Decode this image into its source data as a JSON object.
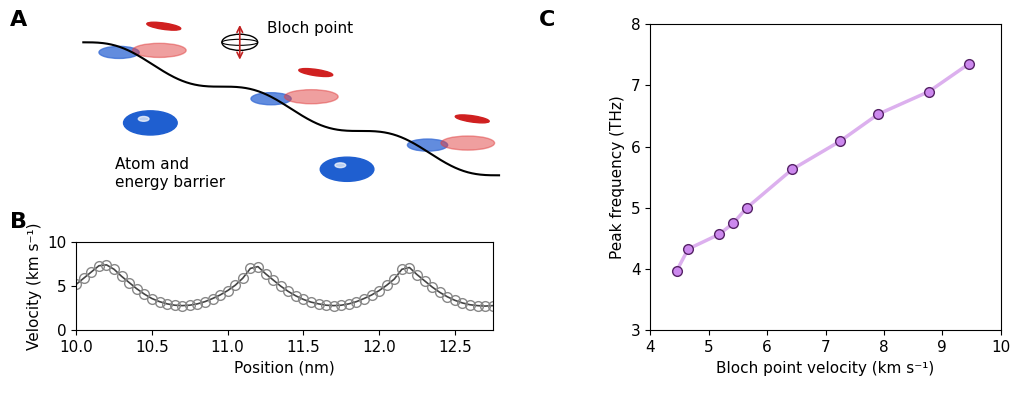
{
  "panel_labels": [
    "A",
    "B",
    "C"
  ],
  "diagram": {
    "labels": [
      "Bloch point",
      "Atom and\nenergy barrier"
    ]
  },
  "chart_data": [
    {
      "type": "line",
      "x_label": "Position (nm)",
      "y_label": "Velocity (km s⁻¹)",
      "x": [
        10.0,
        10.05,
        10.1,
        10.15,
        10.2,
        10.25,
        10.3,
        10.35,
        10.4,
        10.45,
        10.5,
        10.55,
        10.6,
        10.65,
        10.7,
        10.75,
        10.8,
        10.85,
        10.9,
        10.95,
        11.0,
        11.05,
        11.1,
        11.15,
        11.2,
        11.25,
        11.3,
        11.35,
        11.4,
        11.45,
        11.5,
        11.55,
        11.6,
        11.65,
        11.7,
        11.75,
        11.8,
        11.85,
        11.9,
        11.95,
        12.0,
        12.05,
        12.1,
        12.15,
        12.2,
        12.25,
        12.3,
        12.35,
        12.4,
        12.45,
        12.5,
        12.55,
        12.6,
        12.65,
        12.7,
        12.75
      ],
      "values": [
        5.2,
        5.9,
        6.6,
        7.3,
        7.4,
        6.9,
        6.1,
        5.4,
        4.7,
        4.1,
        3.6,
        3.25,
        3.0,
        2.85,
        2.8,
        2.85,
        3.0,
        3.25,
        3.6,
        4.0,
        4.5,
        5.1,
        5.9,
        7.0,
        7.2,
        6.4,
        5.7,
        5.0,
        4.4,
        3.9,
        3.5,
        3.2,
        3.0,
        2.85,
        2.8,
        2.85,
        3.0,
        3.25,
        3.6,
        4.0,
        4.5,
        5.1,
        5.8,
        6.9,
        7.1,
        6.3,
        5.6,
        4.9,
        4.3,
        3.8,
        3.4,
        3.1,
        2.9,
        2.8,
        2.75,
        2.8
      ],
      "color": "#444444",
      "marker": "open_circle",
      "xlim": [
        10.0,
        12.75
      ],
      "xticks": [
        10.0,
        10.5,
        11.0,
        11.5,
        12.0,
        12.5
      ],
      "ylim": [
        0,
        10
      ],
      "yticks": [
        0,
        5,
        10
      ]
    },
    {
      "type": "line",
      "x_label": "Bloch point velocity (km s⁻¹)",
      "y_label": "Peak frequency (THz)",
      "x": [
        4.45,
        4.65,
        5.18,
        5.42,
        5.65,
        6.43,
        7.25,
        7.9,
        8.77,
        9.45
      ],
      "values": [
        3.97,
        4.33,
        4.57,
        4.75,
        5.0,
        5.63,
        6.09,
        6.53,
        6.9,
        7.35
      ],
      "color": "#cc88ee",
      "marker": "circle",
      "xlim": [
        4,
        10
      ],
      "xticks": [
        4,
        5,
        6,
        7,
        8,
        9,
        10
      ],
      "ylim": [
        3,
        8
      ],
      "yticks": [
        3,
        4,
        5,
        6,
        7,
        8
      ]
    }
  ]
}
